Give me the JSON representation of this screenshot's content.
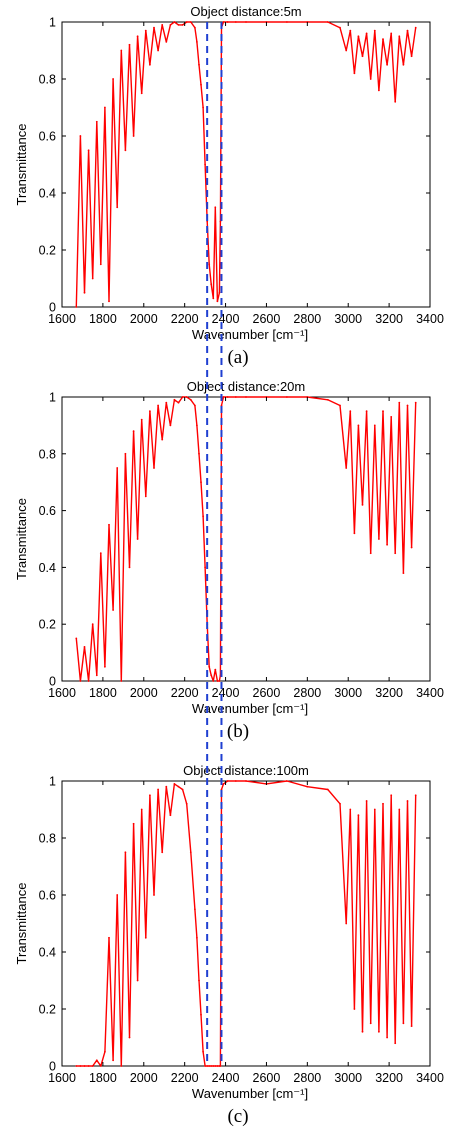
{
  "chart_data": [
    {
      "type": "line",
      "title": "Object distance:5m",
      "xlabel": "Wavenumber [cm⁻¹]",
      "ylabel": "Transmittance",
      "panel_label": "(a)",
      "xlim": [
        1600,
        3400
      ],
      "ylim": [
        0,
        1
      ],
      "xticks": [
        1600,
        1800,
        2000,
        2200,
        2400,
        2600,
        2800,
        3000,
        3200,
        3400
      ],
      "yticks": [
        0,
        0.2,
        0.4,
        0.6,
        0.8,
        1
      ],
      "grid": false,
      "series": [
        {
          "color": "#ff0000",
          "x": [
            1670,
            1690,
            1710,
            1730,
            1750,
            1770,
            1790,
            1810,
            1830,
            1850,
            1870,
            1890,
            1910,
            1930,
            1950,
            1970,
            1990,
            2010,
            2030,
            2050,
            2070,
            2090,
            2110,
            2130,
            2150,
            2170,
            2190,
            2210,
            2230,
            2250,
            2260,
            2270,
            2280,
            2290,
            2300,
            2310,
            2320,
            2330,
            2340,
            2350,
            2360,
            2370,
            2375,
            2380,
            2390,
            2410,
            2450,
            2500,
            2600,
            2700,
            2800,
            2900,
            2960,
            2990,
            3010,
            3030,
            3050,
            3070,
            3090,
            3110,
            3130,
            3150,
            3170,
            3190,
            3210,
            3230,
            3250,
            3270,
            3290,
            3310,
            3330
          ],
          "y": [
            0.0,
            0.6,
            0.05,
            0.55,
            0.1,
            0.65,
            0.15,
            0.7,
            0.02,
            0.8,
            0.35,
            0.9,
            0.55,
            0.92,
            0.6,
            0.95,
            0.75,
            0.97,
            0.85,
            0.98,
            0.9,
            0.99,
            0.93,
            0.99,
            1.0,
            0.99,
            0.99,
            1.0,
            1.0,
            0.98,
            0.93,
            0.85,
            0.78,
            0.7,
            0.5,
            0.3,
            0.15,
            0.08,
            0.03,
            0.35,
            0.02,
            0.05,
            0.3,
            0.98,
            1.0,
            1.0,
            1.0,
            1.0,
            1.0,
            1.0,
            1.0,
            1.0,
            0.98,
            0.9,
            0.97,
            0.82,
            0.95,
            0.88,
            0.96,
            0.8,
            0.97,
            0.76,
            0.94,
            0.85,
            0.96,
            0.72,
            0.95,
            0.85,
            0.97,
            0.88,
            0.98
          ]
        }
      ],
      "markers": [
        2310,
        2380
      ]
    },
    {
      "type": "line",
      "title": "Object distance:20m",
      "xlabel": "Wavenumber [cm⁻¹]",
      "ylabel": "Transmittance",
      "panel_label": "(b)",
      "xlim": [
        1600,
        3400
      ],
      "ylim": [
        0,
        1
      ],
      "xticks": [
        1600,
        1800,
        2000,
        2200,
        2400,
        2600,
        2800,
        3000,
        3200,
        3400
      ],
      "yticks": [
        0,
        0.2,
        0.4,
        0.6,
        0.8,
        1
      ],
      "grid": false,
      "series": [
        {
          "color": "#ff0000",
          "x": [
            1670,
            1690,
            1710,
            1730,
            1750,
            1770,
            1790,
            1810,
            1830,
            1850,
            1870,
            1890,
            1910,
            1930,
            1950,
            1970,
            1990,
            2010,
            2030,
            2050,
            2070,
            2090,
            2110,
            2130,
            2150,
            2170,
            2190,
            2210,
            2230,
            2250,
            2260,
            2270,
            2280,
            2290,
            2300,
            2310,
            2320,
            2330,
            2340,
            2350,
            2360,
            2370,
            2375,
            2380,
            2390,
            2410,
            2450,
            2500,
            2600,
            2700,
            2800,
            2900,
            2960,
            2990,
            3010,
            3030,
            3050,
            3070,
            3090,
            3110,
            3130,
            3150,
            3170,
            3190,
            3210,
            3230,
            3250,
            3270,
            3290,
            3310,
            3330
          ],
          "y": [
            0.15,
            0.0,
            0.12,
            0.0,
            0.2,
            0.02,
            0.45,
            0.05,
            0.55,
            0.25,
            0.75,
            0.0,
            0.8,
            0.4,
            0.88,
            0.5,
            0.92,
            0.65,
            0.95,
            0.75,
            0.97,
            0.85,
            0.98,
            0.9,
            0.99,
            0.98,
            1.0,
            1.0,
            0.99,
            0.97,
            0.9,
            0.8,
            0.7,
            0.58,
            0.4,
            0.2,
            0.05,
            0.02,
            0.0,
            0.04,
            0.0,
            0.0,
            0.02,
            0.97,
            1.0,
            1.0,
            1.0,
            1.0,
            1.0,
            1.0,
            1.0,
            0.99,
            0.97,
            0.75,
            0.95,
            0.52,
            0.9,
            0.62,
            0.95,
            0.45,
            0.9,
            0.5,
            0.95,
            0.48,
            0.93,
            0.45,
            0.98,
            0.38,
            0.97,
            0.47,
            0.98
          ]
        }
      ],
      "markers": [
        2310,
        2380
      ]
    },
    {
      "type": "line",
      "title": "Object distance:100m",
      "xlabel": "Wavenumber [cm⁻¹]",
      "ylabel": "Transmittance",
      "panel_label": "(c)",
      "xlim": [
        1600,
        3400
      ],
      "ylim": [
        0,
        1
      ],
      "xticks": [
        1600,
        1800,
        2000,
        2200,
        2400,
        2600,
        2800,
        3000,
        3200,
        3400
      ],
      "yticks": [
        0,
        0.2,
        0.4,
        0.6,
        0.8,
        1
      ],
      "grid": false,
      "series": [
        {
          "color": "#ff0000",
          "x": [
            1670,
            1690,
            1710,
            1730,
            1750,
            1770,
            1790,
            1810,
            1830,
            1850,
            1870,
            1890,
            1910,
            1930,
            1950,
            1970,
            1990,
            2010,
            2030,
            2050,
            2070,
            2090,
            2110,
            2130,
            2150,
            2170,
            2190,
            2210,
            2230,
            2250,
            2260,
            2270,
            2280,
            2290,
            2300,
            2310,
            2320,
            2330,
            2340,
            2350,
            2360,
            2370,
            2375,
            2380,
            2390,
            2410,
            2450,
            2500,
            2600,
            2700,
            2800,
            2900,
            2960,
            2990,
            3010,
            3030,
            3050,
            3070,
            3090,
            3110,
            3130,
            3150,
            3170,
            3190,
            3210,
            3230,
            3250,
            3270,
            3290,
            3310,
            3330
          ],
          "y": [
            0.0,
            0.0,
            0.0,
            0.0,
            0.0,
            0.02,
            0.0,
            0.05,
            0.45,
            0.02,
            0.6,
            0.0,
            0.75,
            0.1,
            0.85,
            0.3,
            0.9,
            0.45,
            0.95,
            0.6,
            0.97,
            0.75,
            0.98,
            0.88,
            0.99,
            0.98,
            0.97,
            0.92,
            0.75,
            0.55,
            0.45,
            0.3,
            0.18,
            0.05,
            0.0,
            0.0,
            0.0,
            0.0,
            0.0,
            0.0,
            0.0,
            0.0,
            0.0,
            0.97,
            0.99,
            1.0,
            1.0,
            1.0,
            0.99,
            1.0,
            0.98,
            0.97,
            0.92,
            0.5,
            0.9,
            0.2,
            0.88,
            0.12,
            0.93,
            0.15,
            0.9,
            0.12,
            0.92,
            0.1,
            0.95,
            0.08,
            0.9,
            0.15,
            0.93,
            0.14,
            0.95
          ]
        }
      ],
      "markers": [
        2310,
        2380
      ]
    }
  ]
}
